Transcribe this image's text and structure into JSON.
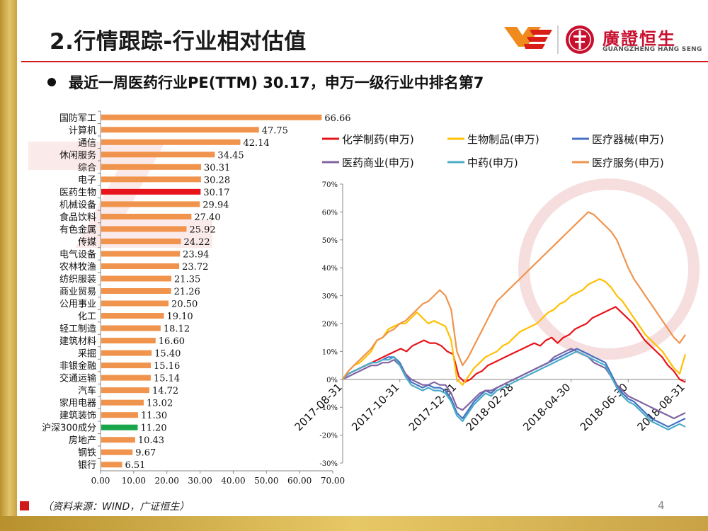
{
  "header": {
    "title": "2.行情跟踪-行业相对估值",
    "logo_cn": "廣證恒生",
    "logo_en": "GUANGZHENG HANG SENG"
  },
  "subtitle": "最近一周医药行业PE(TTM) 30.17，申万一级行业中排名第7",
  "footer": {
    "source": "（资料来源：WIND，广证恒生）",
    "page": "4"
  },
  "colors": {
    "bar_default": "#F0944D",
    "bar_pharma": "#E8141B",
    "bar_index": "#19A64A"
  },
  "chart_data": [
    {
      "type": "bar",
      "orientation": "horizontal",
      "categories": [
        "国防军工",
        "计算机",
        "通信",
        "休闲服务",
        "综合",
        "电子",
        "医药生物",
        "机械设备",
        "食品饮料",
        "有色金属",
        "传媒",
        "电气设备",
        "农林牧渔",
        "纺织服装",
        "商业贸易",
        "公用事业",
        "化工",
        "轻工制造",
        "建筑材料",
        "采掘",
        "非银金融",
        "交通运输",
        "汽车",
        "家用电器",
        "建筑装饰",
        "沪深300成分",
        "房地产",
        "钢铁",
        "银行"
      ],
      "values": [
        66.66,
        47.75,
        42.14,
        34.45,
        30.31,
        30.28,
        30.17,
        29.94,
        27.4,
        25.92,
        24.22,
        23.94,
        23.72,
        21.35,
        21.26,
        20.5,
        19.1,
        18.12,
        16.6,
        15.4,
        15.16,
        15.14,
        14.72,
        13.02,
        11.3,
        11.2,
        10.43,
        9.67,
        6.51
      ],
      "value_labels": [
        "66.66",
        "47.75",
        "42.14",
        "34.45",
        "30.31",
        "30.28",
        "30.17",
        "29.94",
        "27.40",
        "25.92",
        "24.22",
        "23.94",
        "23.72",
        "21.35",
        "21.26",
        "20.50",
        "19.10",
        "18.12",
        "16.60",
        "15.40",
        "15.16",
        "15.14",
        "14.72",
        "13.02",
        "11.30",
        "11.20",
        "10.43",
        "9.67",
        "6.51"
      ],
      "highlight": {
        "医药生物": "bar_pharma",
        "沪深300成分": "bar_index"
      },
      "xlim": [
        0,
        70
      ],
      "xticks": [
        "0.00",
        "10.00",
        "20.00",
        "30.00",
        "40.00",
        "50.00",
        "60.00",
        "70.00"
      ],
      "title": "",
      "xlabel": "",
      "ylabel": ""
    },
    {
      "type": "line",
      "title": "",
      "xlabel": "",
      "ylabel": "",
      "ylim": [
        -30,
        70
      ],
      "yticks": [
        "70%",
        "60%",
        "50%",
        "40%",
        "30%",
        "20%",
        "10%",
        "0%",
        "-10%",
        "-20%",
        "-30%"
      ],
      "xticks": [
        "2017-08-31",
        "2017-10-31",
        "2017-12-31",
        "2018-02-28",
        "2018-04-30",
        "2018-06-30",
        "2018-08-31"
      ],
      "legend_position": "top",
      "series": [
        {
          "name": "化学制药(申万)",
          "color": "#E8141B",
          "values": [
            0,
            2,
            3,
            4,
            5,
            6,
            7,
            8,
            9,
            10,
            11,
            10,
            12,
            13,
            14,
            13,
            13,
            12,
            10,
            9,
            1,
            -1,
            0,
            2,
            3,
            5,
            6,
            7,
            8,
            9,
            10,
            11,
            12,
            13,
            12,
            14,
            15,
            13,
            15,
            16,
            18,
            19,
            20,
            22,
            23,
            24,
            25,
            26,
            24,
            22,
            20,
            17,
            14,
            12,
            10,
            8,
            5,
            3,
            0,
            -1
          ]
        },
        {
          "name": "生物制品(申万)",
          "color": "#FFC000",
          "values": [
            0,
            3,
            5,
            6,
            8,
            10,
            14,
            15,
            18,
            19,
            20,
            20,
            22,
            24,
            22,
            20,
            21,
            20,
            19,
            14,
            0,
            -2,
            1,
            4,
            6,
            8,
            9,
            10,
            12,
            13,
            15,
            17,
            18,
            19,
            20,
            22,
            24,
            25,
            27,
            28,
            30,
            31,
            32,
            34,
            35,
            36,
            35,
            33,
            30,
            28,
            25,
            22,
            19,
            16,
            14,
            12,
            10,
            7,
            4,
            2,
            9
          ]
        },
        {
          "name": "医疗器械(申万)",
          "color": "#4472C4",
          "values": [
            0,
            2,
            3,
            4,
            5,
            6,
            6,
            7,
            8,
            8,
            6,
            2,
            -1,
            -2,
            -3,
            -2,
            -3,
            -3,
            -4,
            -7,
            -12,
            -14,
            -11,
            -8,
            -6,
            -4,
            -5,
            -3,
            -2,
            -1,
            0,
            1,
            2,
            3,
            4,
            5,
            6,
            7,
            8,
            9,
            10,
            11,
            10,
            9,
            8,
            7,
            6,
            2,
            -2,
            -5,
            -7,
            -8,
            -10,
            -12,
            -14,
            -15,
            -16,
            -17,
            -16,
            -15,
            -14
          ]
        },
        {
          "name": "医药商业(申万)",
          "color": "#8064A2",
          "values": [
            0,
            1,
            2,
            3,
            4,
            5,
            5,
            6,
            6,
            7,
            5,
            2,
            0,
            -1,
            -2,
            -2,
            -1,
            -2,
            -2,
            -5,
            -10,
            -11,
            -9,
            -7,
            -5,
            -4,
            -4,
            -3,
            -2,
            -1,
            0,
            1,
            2,
            3,
            4,
            5,
            6,
            8,
            9,
            10,
            11,
            10,
            9,
            8,
            6,
            5,
            4,
            1,
            -2,
            -4,
            -6,
            -7,
            -8,
            -9,
            -10,
            -11,
            -12,
            -13,
            -14,
            -13,
            -12
          ]
        },
        {
          "name": "中药(申万)",
          "color": "#4BACC6",
          "values": [
            0,
            2,
            3,
            4,
            5,
            6,
            6,
            7,
            7,
            8,
            5,
            1,
            -2,
            -3,
            -4,
            -3,
            -4,
            -4,
            -5,
            -8,
            -13,
            -15,
            -12,
            -9,
            -7,
            -5,
            -6,
            -4,
            -3,
            -2,
            -1,
            0,
            1,
            2,
            3,
            4,
            5,
            6,
            7,
            8,
            9,
            10,
            9,
            8,
            7,
            6,
            5,
            1,
            -3,
            -6,
            -8,
            -9,
            -11,
            -13,
            -15,
            -16,
            -17,
            -18,
            -17,
            -16,
            -17
          ]
        },
        {
          "name": "医疗服务(申万)",
          "color": "#F0944D",
          "values": [
            0,
            3,
            5,
            7,
            9,
            11,
            14,
            15,
            17,
            18,
            20,
            21,
            23,
            25,
            27,
            28,
            30,
            32,
            30,
            25,
            10,
            5,
            8,
            12,
            16,
            20,
            24,
            28,
            30,
            32,
            34,
            36,
            38,
            40,
            42,
            44,
            46,
            48,
            50,
            52,
            54,
            56,
            58,
            60,
            59,
            57,
            55,
            53,
            50,
            45,
            40,
            36,
            33,
            30,
            27,
            24,
            21,
            18,
            15,
            13,
            16
          ]
        }
      ]
    }
  ]
}
